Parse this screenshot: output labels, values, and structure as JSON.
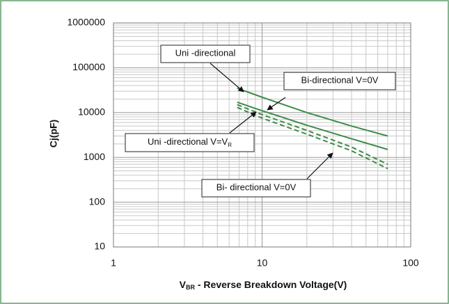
{
  "chart_data": {
    "type": "line",
    "log_x": true,
    "log_y": true,
    "grid": true,
    "minor_grid": true,
    "y_label": "Cj(pF)",
    "x_label": {
      "main": "V",
      "subscript": "BR",
      "rest": " - Reverse Breakdown Voltage(V)"
    },
    "x": [
      6.8,
      10,
      20,
      40,
      70
    ],
    "series": [
      {
        "color": "#3c8c46",
        "style": "solid",
        "values": [
          35000,
          22000,
          10000,
          5000,
          3000
        ]
      },
      {
        "color": "#3c8c46",
        "style": "solid",
        "values": [
          17000,
          11000,
          5200,
          2600,
          1500
        ]
      },
      {
        "color": "#3c8c46",
        "style": "dashed",
        "values": [
          15000,
          9000,
          4000,
          1700,
          700
        ]
      },
      {
        "color": "#3c8c46",
        "style": "dashed",
        "values": [
          13000,
          7500,
          3300,
          1400,
          560
        ]
      }
    ],
    "xlim": [
      1,
      100
    ],
    "xticks": [
      1,
      10,
      100
    ],
    "ylim": [
      10,
      1000000
    ],
    "yticks": [
      10,
      100,
      1000,
      10000,
      100000,
      1000000
    ],
    "annotations": [
      {
        "text": "Uni -directional"
      },
      {
        "text": "Bi-directional V=0V"
      },
      {
        "text": "Uni -directional V=V",
        "subscript": "R"
      },
      {
        "text": "Bi- directional V=0V"
      }
    ]
  }
}
